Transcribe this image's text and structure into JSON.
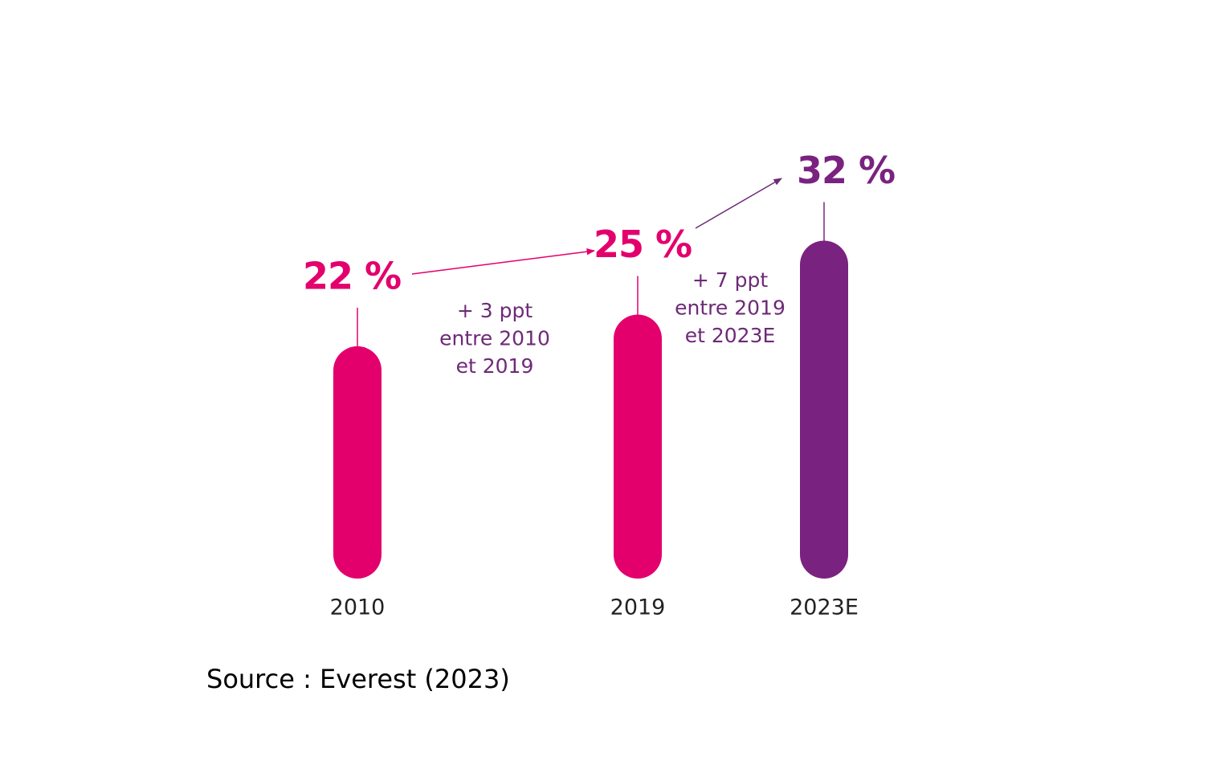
{
  "chart_data": {
    "type": "bar",
    "categories": [
      "2010",
      "2019",
      "2023E"
    ],
    "values": [
      22,
      25,
      32
    ],
    "value_labels": [
      "22 %",
      "25 %",
      "32 %"
    ],
    "colors": [
      "#e3006d",
      "#e3006d",
      "#7a2280"
    ],
    "ylim": [
      0,
      50
    ],
    "annotations": [
      [
        "+ 3 ppt",
        "entre 2010",
        "et 2019"
      ],
      [
        "+ 7 ppt",
        "entre 2019",
        "et 2023E"
      ]
    ],
    "source": "Source : Everest (2023)"
  }
}
